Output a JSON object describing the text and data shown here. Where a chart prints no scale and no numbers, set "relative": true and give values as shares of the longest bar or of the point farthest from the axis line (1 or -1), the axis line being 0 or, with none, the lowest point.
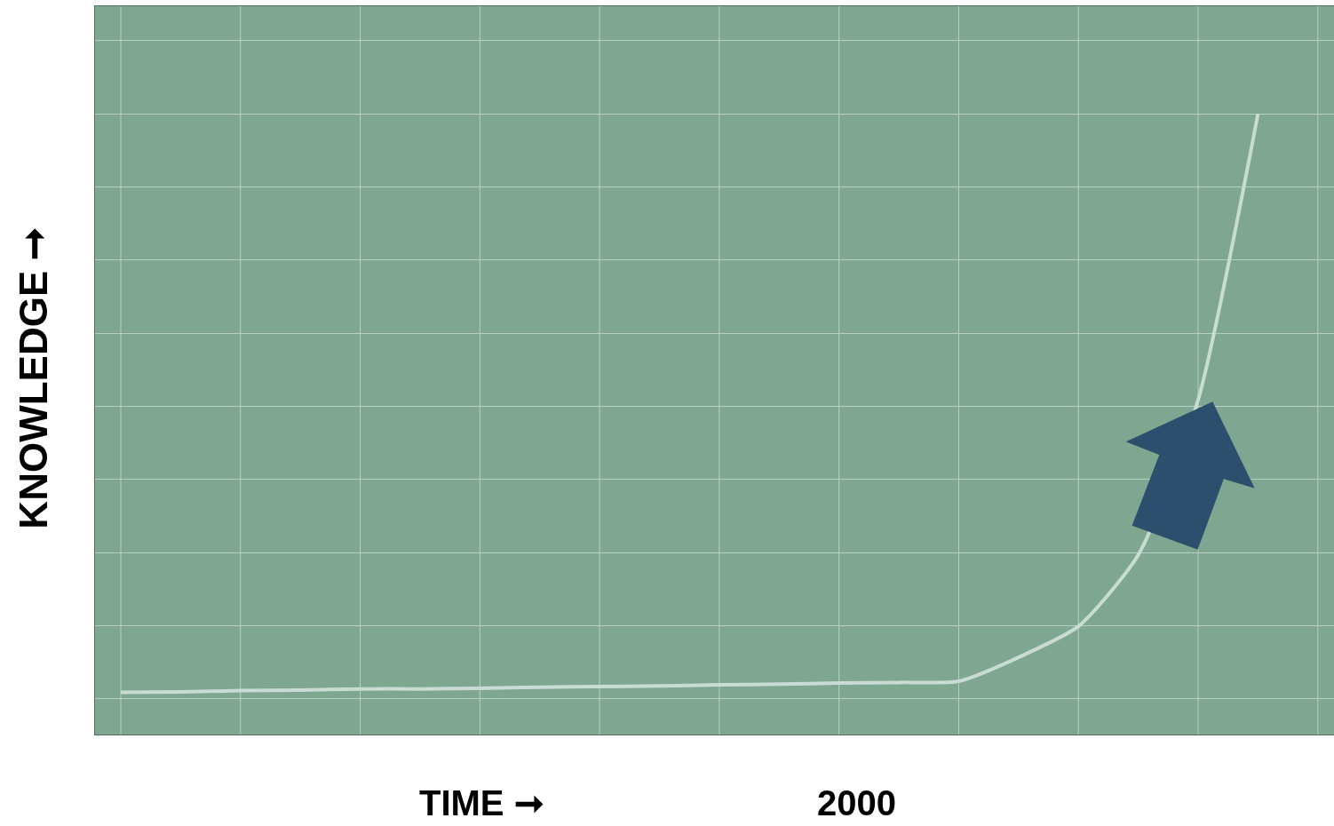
{
  "chart_data": {
    "type": "line",
    "relative": true,
    "xlabel": "TIME ➞",
    "ylabel": "KNOWLEDGE ➞",
    "categories": [
      null,
      null,
      null,
      null,
      null,
      null,
      null,
      null,
      null,
      null,
      null,
      null,
      null,
      null,
      null,
      null,
      null,
      null,
      null,
      null,
      null
    ],
    "series": [
      {
        "color": "#c8dcd4",
        "values": [
          0.011,
          0.012,
          0.014,
          0.015,
          0.017,
          0.017,
          0.018,
          0.02,
          0.021,
          0.022,
          0.024,
          0.025,
          0.027,
          0.028,
          0.03,
          0.071,
          0.124,
          0.246,
          0.511,
          1.0,
          null
        ]
      }
    ],
    "annotations": [
      "2000"
    ],
    "grid": true,
    "marker": "none",
    "line_style": "solid"
  }
}
